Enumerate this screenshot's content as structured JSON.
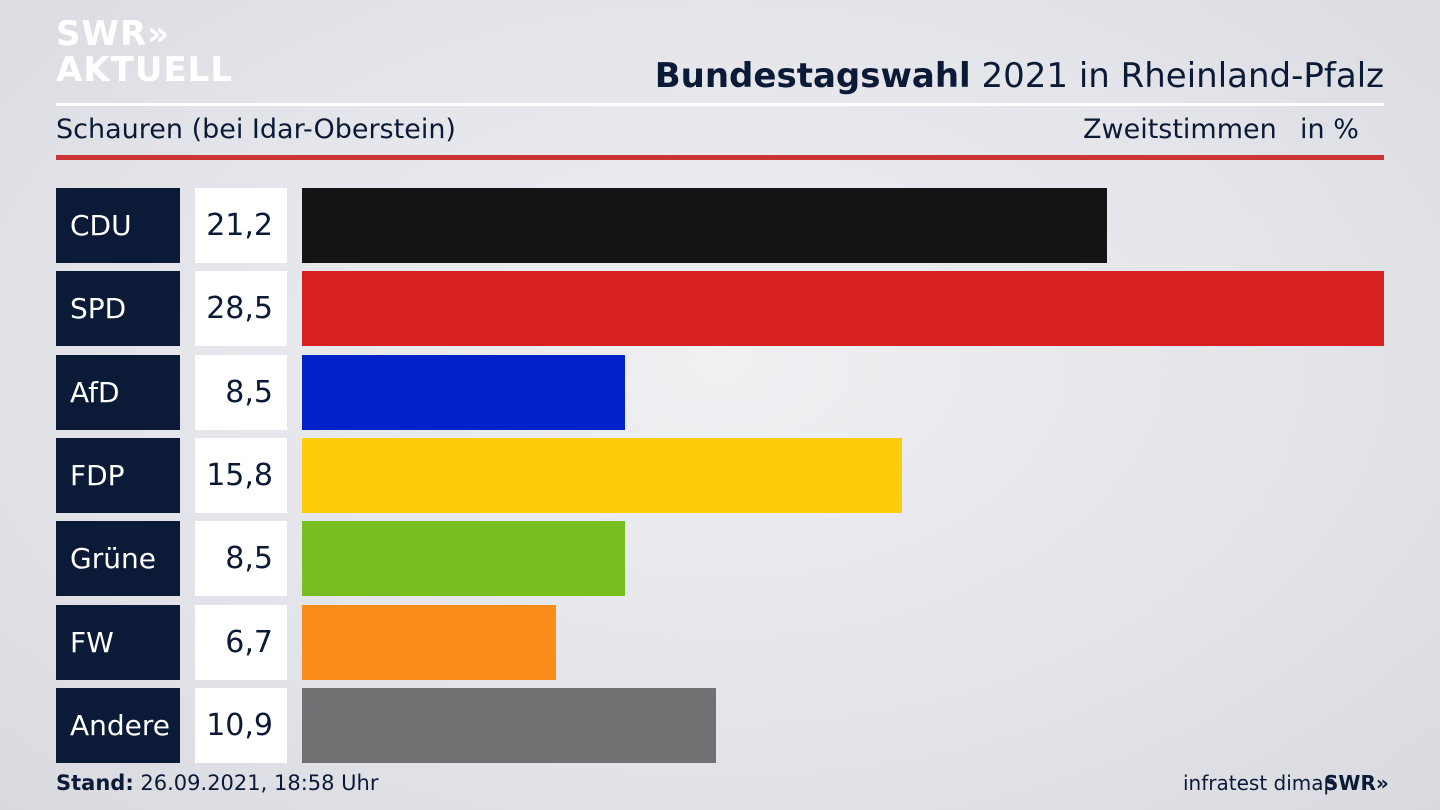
{
  "brand": {
    "logo_line1": "SWR»",
    "logo_line2": "AKTUELL",
    "footer_logo": "SWR»"
  },
  "header": {
    "title_bold": "Bundestagswahl",
    "title_rest": " 2021 in Rheinland-Pfalz"
  },
  "subheader": {
    "location": "Schauren (bei Idar-Oberstein)",
    "measure": "Zweitstimmen",
    "unit": "in %"
  },
  "footer": {
    "stand_label": "Stand:",
    "stand_value": " 26.09.2021, 18:58 Uhr",
    "source": "infratest dimap"
  },
  "chart_data": {
    "type": "bar",
    "orientation": "horizontal",
    "categories": [
      "CDU",
      "SPD",
      "AfD",
      "FDP",
      "Grüne",
      "FW",
      "Andere"
    ],
    "values": [
      21.2,
      28.5,
      8.5,
      15.8,
      8.5,
      6.7,
      10.9
    ],
    "value_labels": [
      "21,2",
      "28,5",
      "8,5",
      "15,8",
      "8,5",
      "6,7",
      "10,9"
    ],
    "colors": [
      "#141414",
      "#d82020",
      "#0022c8",
      "#fdcc0a",
      "#78be1e",
      "#fa8c19",
      "#717173"
    ],
    "xlim": [
      0,
      28.5
    ]
  }
}
